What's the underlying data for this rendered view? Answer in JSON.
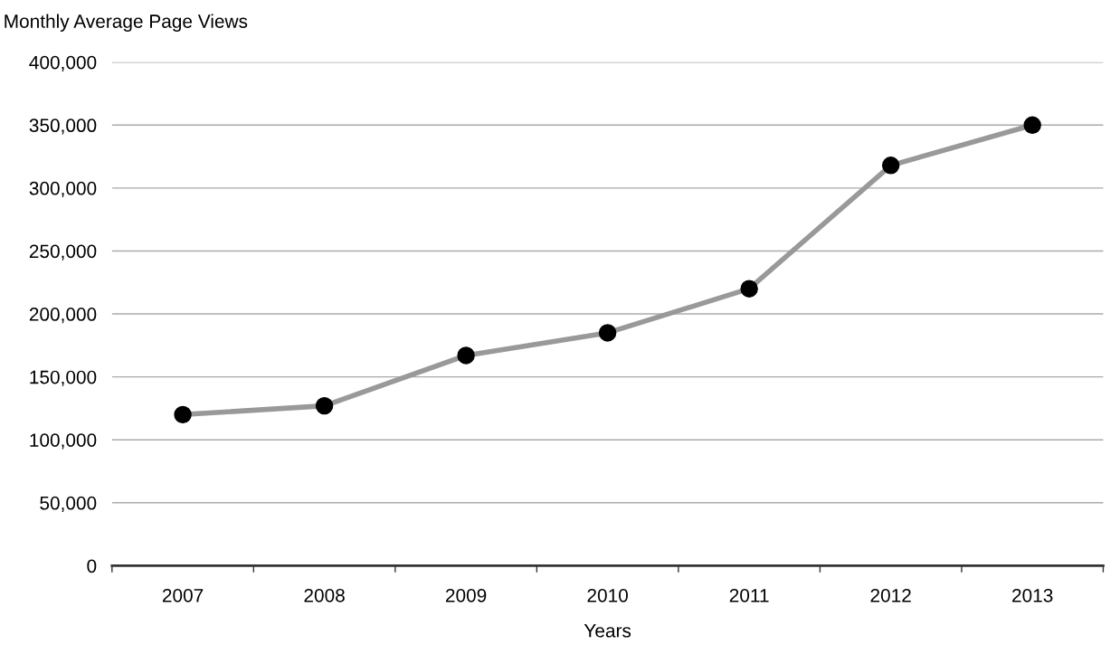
{
  "chart_data": {
    "type": "line",
    "ylabel": "Monthly Average Page Views",
    "xlabel": "Years",
    "categories": [
      "2007",
      "2008",
      "2009",
      "2010",
      "2011",
      "2012",
      "2013"
    ],
    "series": [
      {
        "color": "#999999",
        "colors": [
          "#000000",
          "#000000",
          "#000000",
          "#000000",
          "#000000",
          "#000000",
          "#000000"
        ],
        "values": [
          120000,
          127000,
          167000,
          185000,
          220000,
          318000,
          350000
        ]
      }
    ],
    "ylim": [
      0,
      400000
    ],
    "yticks": [
      {
        "value": 0,
        "label": "0"
      },
      {
        "value": 50000,
        "label": "50,000"
      },
      {
        "value": 100000,
        "label": "100,000"
      },
      {
        "value": 150000,
        "label": "150,000"
      },
      {
        "value": 200000,
        "label": "200,000"
      },
      {
        "value": 250000,
        "label": "250,000"
      },
      {
        "value": 300000,
        "label": "300,000"
      },
      {
        "value": 350000,
        "label": "350,000"
      },
      {
        "value": 400000,
        "label": "400,000"
      }
    ],
    "grid": "y",
    "marker": "circle",
    "line_style": "solid"
  }
}
